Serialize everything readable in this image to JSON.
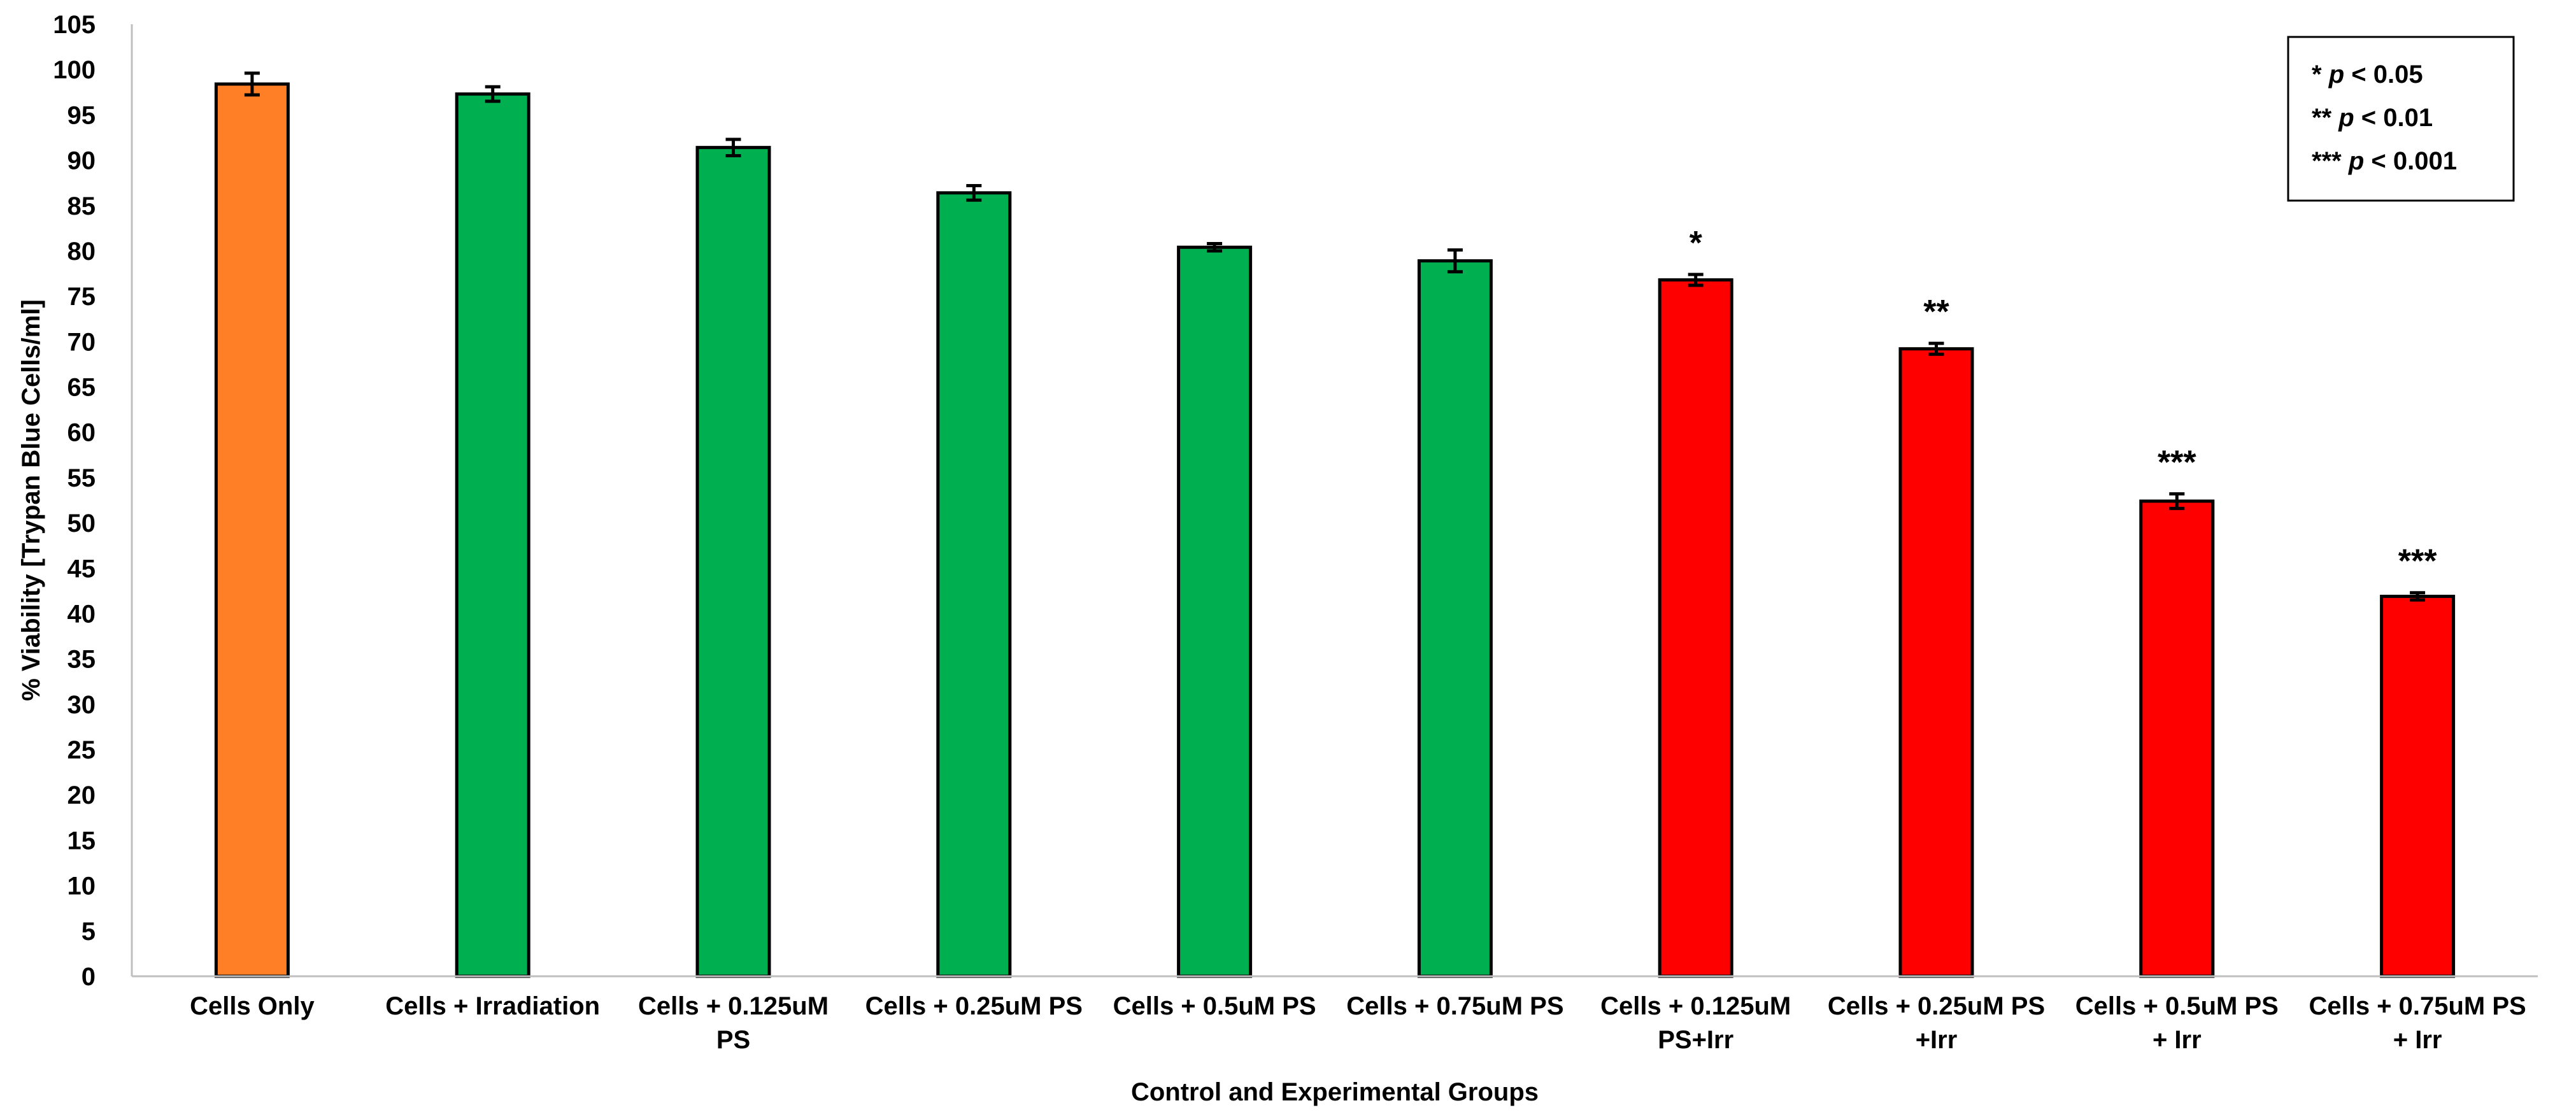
{
  "chart_data": {
    "type": "bar",
    "xlabel": "Control and Experimental Groups",
    "ylabel": "% Viability [Trypan Blue Cells/ml]",
    "ylim": [
      0,
      105
    ],
    "yticks": [
      0,
      5,
      10,
      15,
      20,
      25,
      30,
      35,
      40,
      45,
      50,
      55,
      60,
      65,
      70,
      75,
      80,
      85,
      90,
      95,
      100,
      105
    ],
    "grid": false,
    "legend_position": "top-right",
    "categories": [
      [
        "Cells  Only"
      ],
      [
        "Cells + Irradiation"
      ],
      [
        "Cells  + 0.125uM",
        "PS"
      ],
      [
        "Cells + 0.25uM PS"
      ],
      [
        "Cells + 0.5uM PS"
      ],
      [
        "Cells + 0.75uM PS"
      ],
      [
        "Cells  + 0.125uM",
        "PS+Irr"
      ],
      [
        "Cells  + 0.25uM PS",
        "+Irr"
      ],
      [
        "Cells  + 0.5uM PS",
        "+ Irr"
      ],
      [
        "Cells  + 0.75uM PS",
        "+ Irr"
      ]
    ],
    "values": [
      98.4,
      97.3,
      91.4,
      86.4,
      80.4,
      78.9,
      76.8,
      69.2,
      52.4,
      41.9
    ],
    "errors": [
      1.2,
      0.8,
      0.9,
      0.8,
      0.4,
      1.2,
      0.6,
      0.6,
      0.8,
      0.4
    ],
    "bar_colors": [
      "#FF7F27",
      "#00B050",
      "#00B050",
      "#00B050",
      "#00B050",
      "#00B050",
      "#FF0000",
      "#FF0000",
      "#FF0000",
      "#FF0000"
    ],
    "significance": [
      "",
      "",
      "",
      "",
      "",
      "",
      "*",
      "**",
      "***",
      "***"
    ],
    "legend_entries": [
      {
        "stars": "* ",
        "p": "p",
        "rest": " < 0.05"
      },
      {
        "stars": "** ",
        "p": "p",
        "rest": " < 0.01"
      },
      {
        "stars": " *** ",
        "p": "p",
        "rest": " < 0.001"
      }
    ]
  }
}
